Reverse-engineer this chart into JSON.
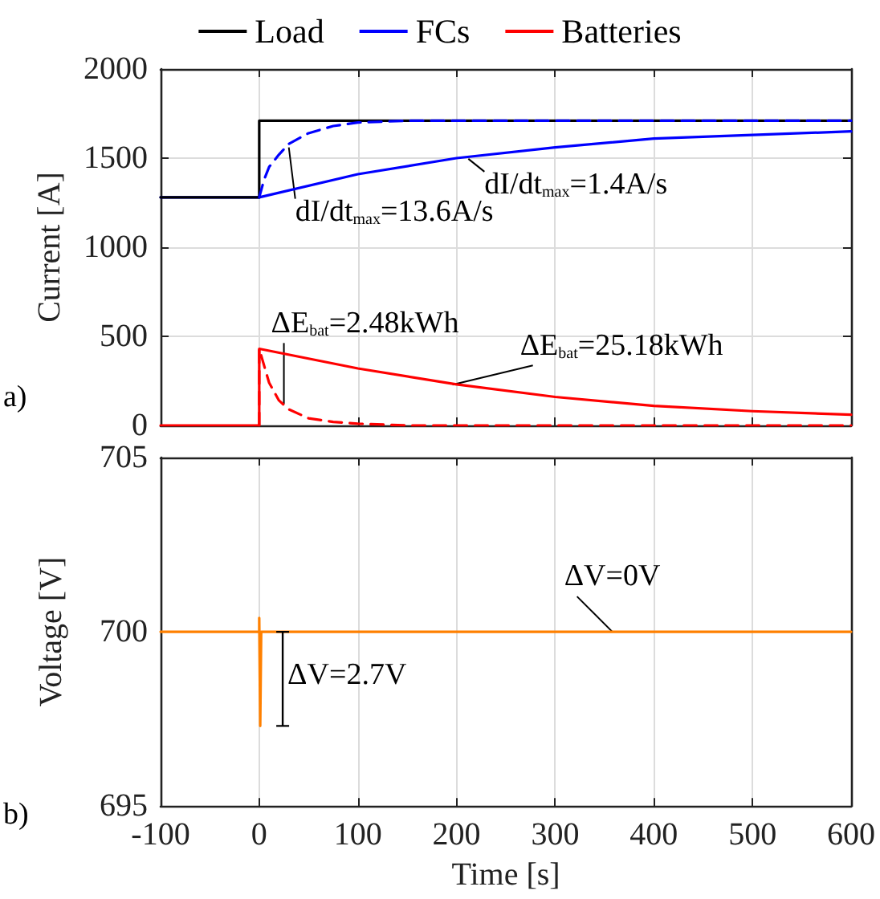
{
  "chart_data": [
    {
      "type": "line",
      "ylabel": "Current [A]",
      "xlim": [
        -100,
        600
      ],
      "xticks": [
        -100,
        0,
        100,
        200,
        300,
        400,
        500,
        600
      ],
      "ylim": [
        0,
        2000
      ],
      "yticks": [
        0,
        500,
        1000,
        1500,
        2000
      ],
      "tick_labels": "y",
      "grid": true,
      "legend": "top",
      "marker": "none",
      "line_style": "solid",
      "series": [
        {
          "name": "Load",
          "color": "#000000",
          "x": [
            -100,
            0,
            0,
            600
          ],
          "values": [
            1280,
            1280,
            1710,
            1710
          ]
        },
        {
          "name": "FCs",
          "color": "#0000ff",
          "x": [
            -100,
            0,
            100,
            200,
            300,
            400,
            500,
            600
          ],
          "values": [
            1280,
            1280,
            1410,
            1500,
            1560,
            1610,
            1630,
            1650
          ]
        },
        {
          "color": "#0000ff",
          "line_style": "dashed",
          "x": [
            0,
            5,
            10,
            20,
            30,
            50,
            75,
            100,
            150,
            600
          ],
          "values": [
            1280,
            1380,
            1450,
            1520,
            1580,
            1640,
            1680,
            1700,
            1710,
            1710
          ]
        },
        {
          "name": "Batteries",
          "color": "#ff0000",
          "x": [
            -100,
            0,
            0,
            100,
            200,
            300,
            400,
            500,
            600
          ],
          "values": [
            0,
            0,
            430,
            320,
            230,
            160,
            110,
            80,
            60
          ]
        },
        {
          "color": "#ff0000",
          "line_style": "dashed",
          "x": [
            0,
            0,
            10,
            20,
            30,
            50,
            75,
            100,
            150,
            600
          ],
          "values": [
            0,
            430,
            240,
            140,
            90,
            40,
            20,
            10,
            0,
            0
          ]
        }
      ],
      "annotations": [
        {
          "text": "dI/dt$_{max}$=13.6A/s",
          "x": 30,
          "y": 1560
        },
        {
          "text": "dI/dt$_{max}$=1.4A/s",
          "x": 212,
          "y": 1496
        },
        {
          "text": "ΔE$_{bat}$=2.48kWh",
          "x": 25,
          "y": 120
        },
        {
          "text": "ΔE$_{bat}$=25.18kWh",
          "x": 196,
          "y": 229
        },
        "a)"
      ]
    },
    {
      "type": "line",
      "xlabel": "Time [s]",
      "ylabel": "Voltage [V]",
      "xlim": [
        -100,
        600
      ],
      "xticks": [
        -100,
        0,
        100,
        200,
        300,
        400,
        500,
        600
      ],
      "ylim": [
        695,
        705
      ],
      "yticks": [
        695,
        700,
        705
      ],
      "grid": true,
      "marker": "none",
      "line_style": "solid",
      "series": [
        {
          "color": "#ff8000",
          "x": [
            -100,
            0,
            0,
            1,
            2,
            600
          ],
          "values": [
            700,
            700,
            700.4,
            697.3,
            700,
            700
          ]
        }
      ],
      "annotations": [
        {
          "text": "ΔV=0V",
          "x": 358,
          "y": 700
        },
        "ΔV=2.7V",
        "b)"
      ]
    }
  ]
}
